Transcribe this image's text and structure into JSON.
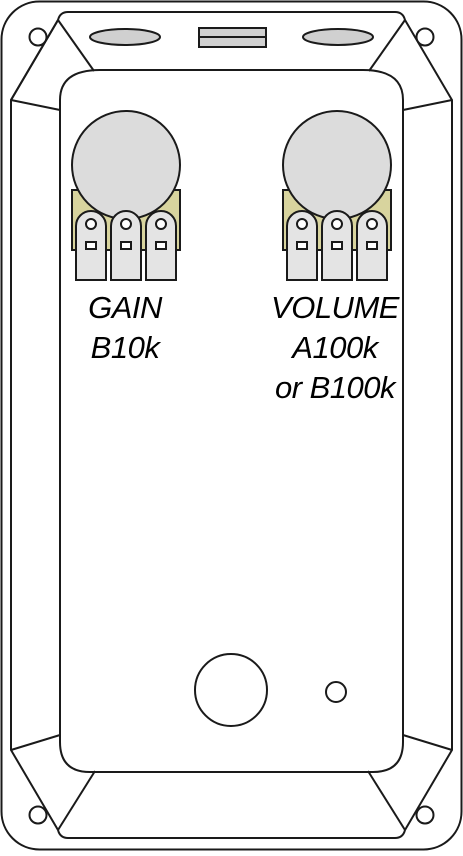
{
  "colors": {
    "outline": "#1a1a1a",
    "background": "#ffffff",
    "knob": "#dcdcdc",
    "pot_body": "#d8d49e",
    "lug": "#e4e4e4",
    "top_slot": "#d0d0d0"
  },
  "pots": [
    {
      "name": "gain",
      "label_lines": [
        "GAIN",
        "B10k"
      ]
    },
    {
      "name": "volume",
      "label_lines": [
        "VOLUME",
        "A100k",
        "or B100k"
      ]
    }
  ]
}
